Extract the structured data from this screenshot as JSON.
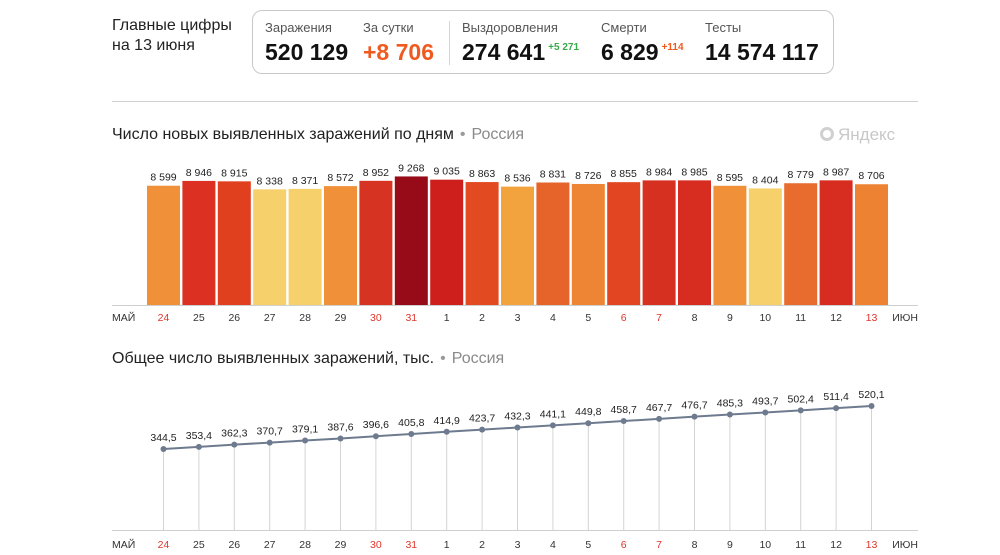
{
  "header": {
    "title_line1": "Главные цифры",
    "title_line2": "на 13 июня"
  },
  "stats": {
    "infections": {
      "label": "Заражения",
      "value": "520 129"
    },
    "daily": {
      "label": "За сутки",
      "value": "+8 706"
    },
    "recovered": {
      "label": "Выздоровления",
      "value": "274 641",
      "delta": "+5 271"
    },
    "deaths": {
      "label": "Смерти",
      "value": "6 829",
      "delta": "+114"
    },
    "tests": {
      "label": "Тесты",
      "value": "14 574 117"
    }
  },
  "colors": {
    "accent": "#ef5a1f",
    "recovered_delta": "#3aa94a",
    "deaths_delta": "#ef5a1f",
    "weekend_tick": "#e0352b",
    "line": "#6e7b8f"
  },
  "watermark": "Яндекс",
  "chart_data": [
    {
      "type": "bar",
      "title": "Число новых выявленных заражений по дням",
      "region": "Россия",
      "categories": [
        "24",
        "25",
        "26",
        "27",
        "28",
        "29",
        "30",
        "31",
        "1",
        "2",
        "3",
        "4",
        "5",
        "6",
        "7",
        "8",
        "9",
        "10",
        "11",
        "12",
        "13"
      ],
      "weekend": [
        true,
        false,
        false,
        false,
        false,
        false,
        true,
        true,
        false,
        false,
        false,
        false,
        false,
        true,
        true,
        false,
        false,
        false,
        false,
        false,
        true
      ],
      "values": [
        8599,
        8946,
        8915,
        8338,
        8371,
        8572,
        8952,
        9268,
        9035,
        8863,
        8536,
        8831,
        8726,
        8855,
        8984,
        8985,
        8595,
        8404,
        8779,
        8987,
        8706
      ],
      "value_labels": [
        "8 599",
        "8 946",
        "8 915",
        "8 338",
        "8 371",
        "8 572",
        "8 952",
        "9 268",
        "9 035",
        "8 863",
        "8 536",
        "8 831",
        "8 726",
        "8 855",
        "8 984",
        "8 985",
        "8 595",
        "8 404",
        "8 779",
        "8 987",
        "8 706"
      ],
      "colors": [
        "#f0913a",
        "#dc3022",
        "#e1401f",
        "#f6d06a",
        "#f6d06a",
        "#f0913a",
        "#d73322",
        "#960b17",
        "#cf1f1c",
        "#e24a22",
        "#f2a33e",
        "#e6632a",
        "#ee8534",
        "#e14521",
        "#d63020",
        "#d72d20",
        "#f0913a",
        "#f6d06a",
        "#e86c2e",
        "#d72d20",
        "#ed8233"
      ],
      "ylim": [
        0,
        9300
      ],
      "start_month": "МАЙ",
      "end_month": "ИЮН"
    },
    {
      "type": "line",
      "title": "Общее число выявленных заражений, тыс.",
      "region": "Россия",
      "categories": [
        "24",
        "25",
        "26",
        "27",
        "28",
        "29",
        "30",
        "31",
        "1",
        "2",
        "3",
        "4",
        "5",
        "6",
        "7",
        "8",
        "9",
        "10",
        "11",
        "12",
        "13"
      ],
      "weekend": [
        true,
        false,
        false,
        false,
        false,
        false,
        true,
        true,
        false,
        false,
        false,
        false,
        false,
        true,
        true,
        false,
        false,
        false,
        false,
        false,
        true
      ],
      "values": [
        344.5,
        353.4,
        362.3,
        370.7,
        379.1,
        387.6,
        396.6,
        405.8,
        414.9,
        423.7,
        432.3,
        441.1,
        449.8,
        458.7,
        467.7,
        476.7,
        485.3,
        493.7,
        502.4,
        511.4,
        520.1
      ],
      "value_labels": [
        "344,5",
        "353,4",
        "362,3",
        "370,7",
        "379,1",
        "387,6",
        "396,6",
        "405,8",
        "414,9",
        "423,7",
        "432,3",
        "441,1",
        "449,8",
        "458,7",
        "467,7",
        "476,7",
        "485,3",
        "493,7",
        "502,4",
        "511,4",
        "520,1"
      ],
      "start_month": "МАЙ",
      "end_month": "ИЮН"
    }
  ]
}
